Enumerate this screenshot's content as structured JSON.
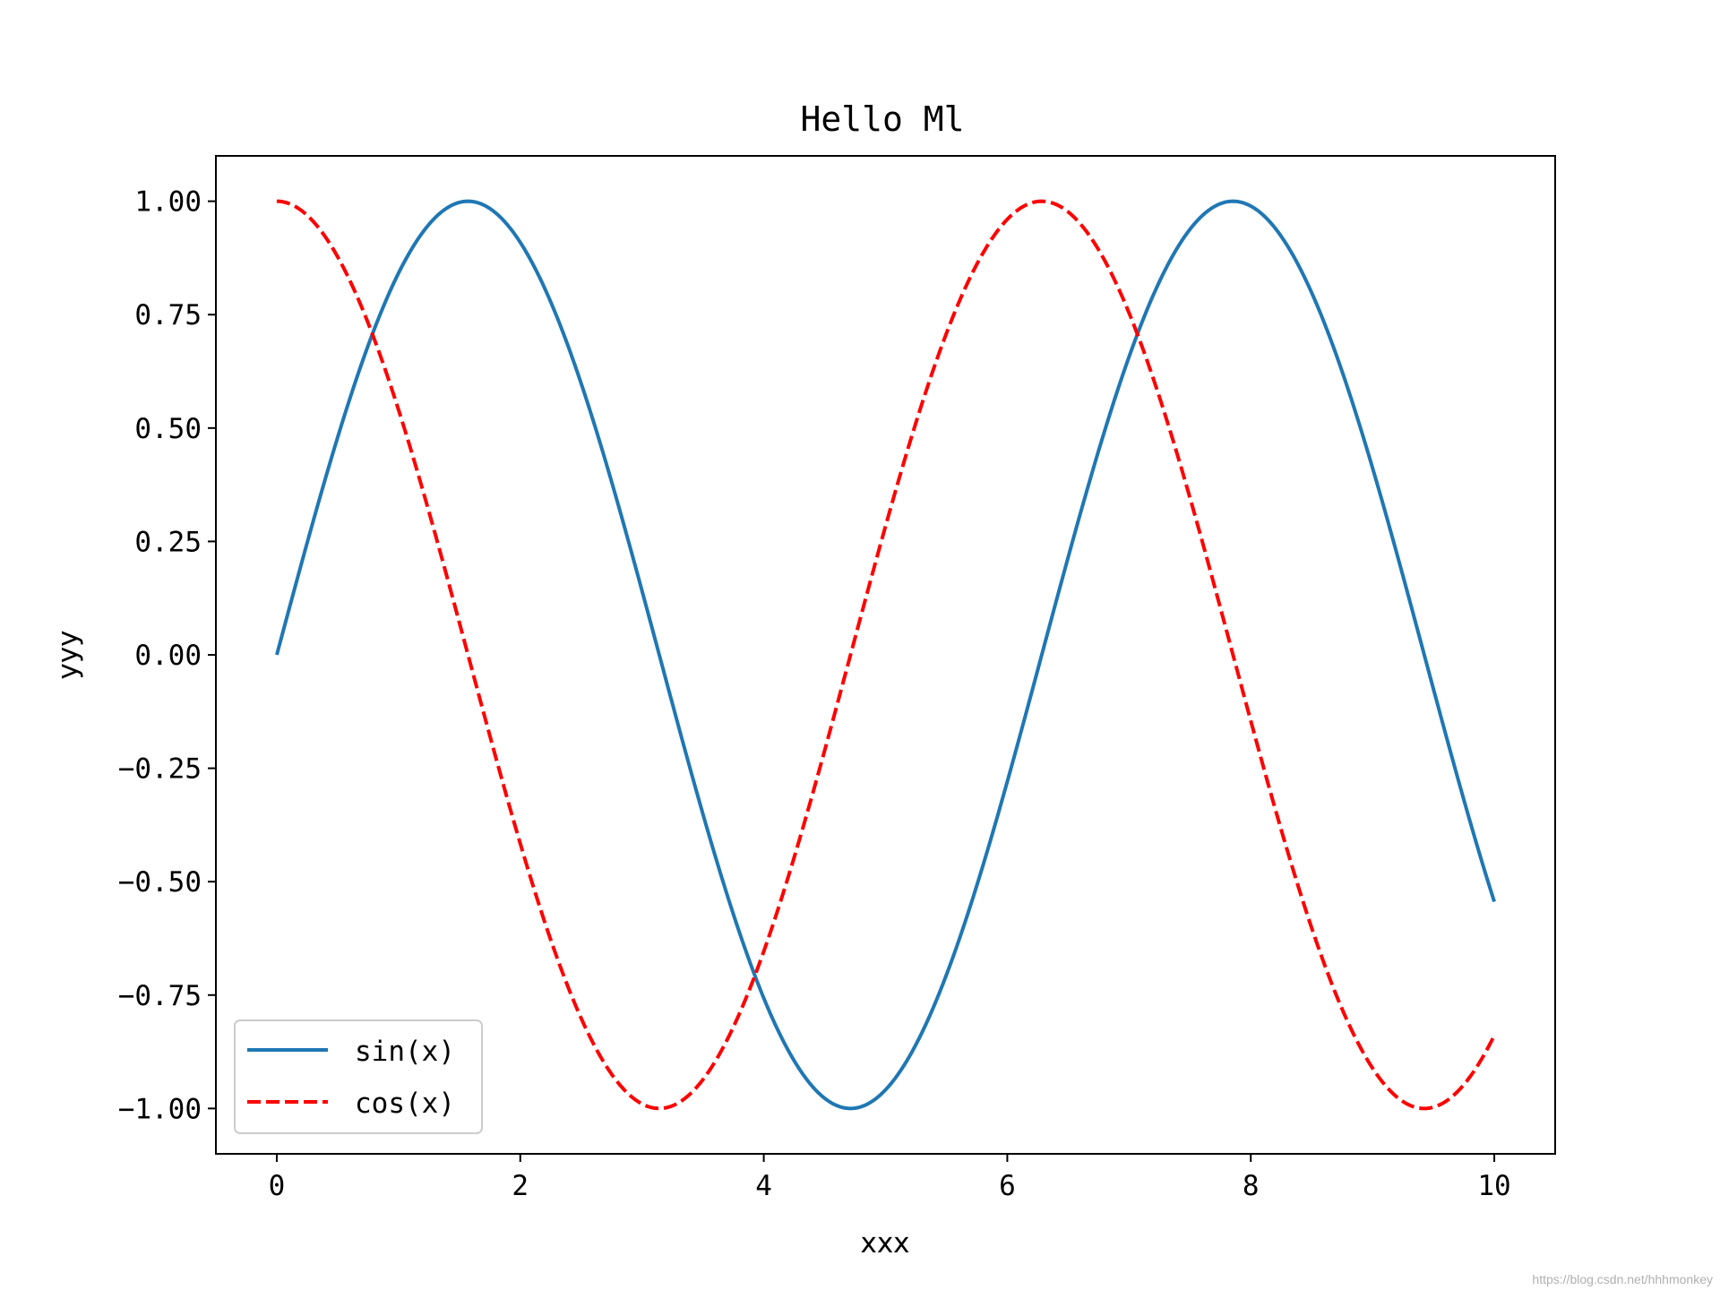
{
  "chart_data": {
    "type": "line",
    "title": "Hello Ml",
    "xlabel": "xxx",
    "ylabel": "yyy",
    "xlim": [
      -0.5,
      10.5
    ],
    "ylim": [
      -1.1,
      1.1
    ],
    "xticks": [
      0,
      2,
      4,
      6,
      8,
      10
    ],
    "xtick_labels": [
      "0",
      "2",
      "4",
      "6",
      "8",
      "10"
    ],
    "yticks": [
      1.0,
      0.75,
      0.5,
      0.25,
      0.0,
      -0.25,
      -0.5,
      -0.75,
      -1.0
    ],
    "ytick_labels": [
      "1.00",
      "0.75",
      "0.50",
      "0.25",
      "0.00",
      "−0.25",
      "−0.50",
      "−0.75",
      "−1.00"
    ],
    "grid": false,
    "legend_position": "lower-left",
    "x": [
      0.0,
      0.5,
      1.0,
      1.5,
      2.0,
      2.5,
      3.0,
      3.5,
      4.0,
      4.5,
      5.0,
      5.5,
      6.0,
      6.5,
      7.0,
      7.5,
      8.0,
      8.5,
      9.0,
      9.5,
      10.0
    ],
    "series": [
      {
        "name": "sin(x)",
        "color": "#1f77b4",
        "style": "solid",
        "values": [
          0.0,
          0.479,
          0.841,
          0.997,
          0.909,
          0.598,
          0.141,
          -0.351,
          -0.757,
          -0.978,
          -0.959,
          -0.706,
          -0.279,
          0.215,
          0.657,
          0.938,
          0.989,
          0.798,
          0.412,
          -0.075,
          -0.544
        ]
      },
      {
        "name": "cos(x)",
        "color": "#ff0000",
        "style": "dashed",
        "values": [
          1.0,
          0.878,
          0.54,
          0.071,
          -0.416,
          -0.801,
          -0.99,
          -0.936,
          -0.654,
          -0.211,
          0.284,
          0.709,
          0.96,
          0.977,
          0.754,
          0.347,
          -0.146,
          -0.602,
          -0.911,
          -0.997,
          -0.839
        ]
      }
    ]
  },
  "watermark": "https://blog.csdn.net/hhhmonkey"
}
